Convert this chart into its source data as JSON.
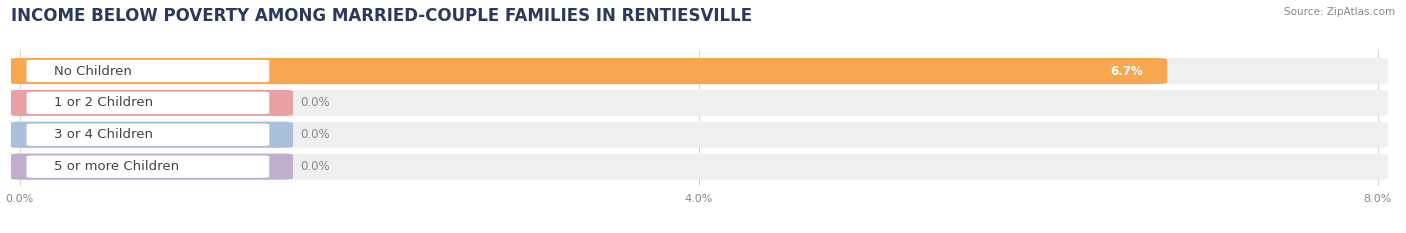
{
  "title": "INCOME BELOW POVERTY AMONG MARRIED-COUPLE FAMILIES IN RENTIESVILLE",
  "source": "Source: ZipAtlas.com",
  "categories": [
    "No Children",
    "1 or 2 Children",
    "3 or 4 Children",
    "5 or more Children"
  ],
  "values": [
    6.7,
    0.0,
    0.0,
    0.0
  ],
  "bar_colors": [
    "#f5a84e",
    "#e8a0a4",
    "#aabfda",
    "#c0aece"
  ],
  "xlim_max": 8.0,
  "xtick_labels": [
    "0.0%",
    "4.0%",
    "8.0%"
  ],
  "xtick_vals": [
    0.0,
    4.0,
    8.0
  ],
  "bar_bg_color": "#efefef",
  "bar_height": 0.7,
  "label_bg_color": "#ffffff",
  "title_fontsize": 12,
  "label_fontsize": 9.5,
  "value_fontsize": 8.5,
  "tick_fontsize": 8
}
